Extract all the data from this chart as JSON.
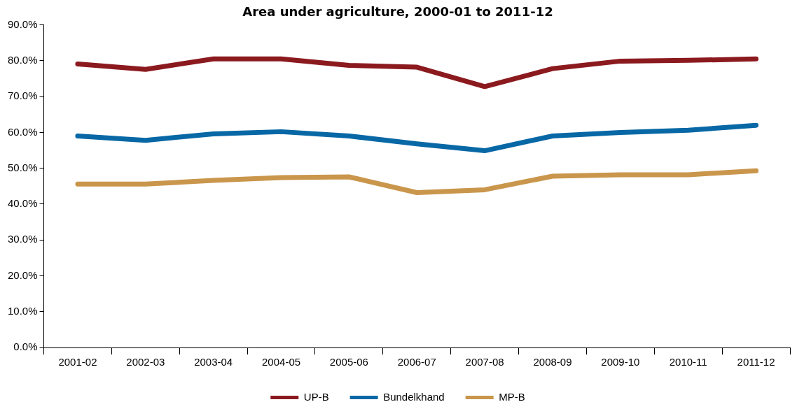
{
  "chart_data": {
    "type": "line",
    "title": "Area under agriculture, 2000-01 to 2011-12",
    "categories": [
      "2001-02",
      "2002-03",
      "2003-04",
      "2004-05",
      "2005-06",
      "2006-07",
      "2007-08",
      "2008-09",
      "2009-10",
      "2010-11",
      "2011-12"
    ],
    "series": [
      {
        "name": "UP-B",
        "color": "#8b1a1f",
        "values": [
          79.1,
          77.6,
          80.5,
          80.5,
          78.7,
          78.2,
          72.8,
          77.8,
          79.9,
          80.1,
          80.5
        ]
      },
      {
        "name": "Bundelkhand",
        "color": "#0868a6",
        "values": [
          59.0,
          57.8,
          59.6,
          60.2,
          59.0,
          56.8,
          54.9,
          59.0,
          60.0,
          60.6,
          62.0
        ]
      },
      {
        "name": "MP-B",
        "color": "#c9964c",
        "values": [
          45.6,
          45.6,
          46.6,
          47.4,
          47.6,
          43.2,
          44.0,
          47.8,
          48.2,
          48.2,
          49.3
        ]
      }
    ],
    "ylim": [
      0,
      90
    ],
    "yticks": [
      {
        "value": 0,
        "label": "0.0%"
      },
      {
        "value": 10,
        "label": "10.0%"
      },
      {
        "value": 20,
        "label": "20.0%"
      },
      {
        "value": 30,
        "label": "30.0%"
      },
      {
        "value": 40,
        "label": "40.0%"
      },
      {
        "value": 50,
        "label": "50.0%"
      },
      {
        "value": 60,
        "label": "60.0%"
      },
      {
        "value": 70,
        "label": "70.0%"
      },
      {
        "value": 80,
        "label": "80.0%"
      },
      {
        "value": 90,
        "label": "90.0%"
      }
    ],
    "grid": false,
    "legend": "bottom",
    "marker": "none",
    "line_style": "solid"
  }
}
